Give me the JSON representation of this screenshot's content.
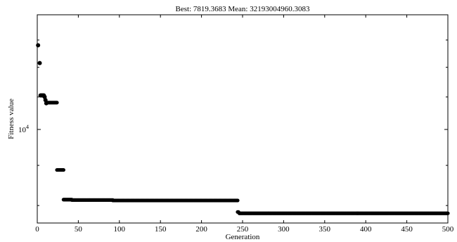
{
  "chart_data": {
    "type": "scatter",
    "title": "Best: 7819.3683 Mean: 32193004960.3083",
    "xlabel": "Generation",
    "ylabel": "Fitness value",
    "xlim": [
      0,
      500
    ],
    "ylim": [
      7600,
      14000
    ],
    "y_scale": "log",
    "x_ticks": [
      0,
      50,
      100,
      150,
      200,
      250,
      300,
      350,
      400,
      450,
      500
    ],
    "y_ticks": [
      {
        "value": 10000,
        "base": "10",
        "exponent": "4"
      }
    ],
    "grid": false,
    "marker_color": "#000000",
    "series": [
      {
        "points": [
          [
            1,
            12800
          ],
          [
            3,
            12150
          ],
          [
            4,
            11050
          ],
          [
            5,
            11050
          ],
          [
            6,
            11050
          ],
          [
            7,
            11050
          ],
          [
            8,
            11050
          ],
          [
            9,
            11000
          ],
          [
            10,
            10900
          ],
          [
            11,
            10800
          ]
        ],
        "segments": [
          {
            "x_from": 12,
            "x_to": 24,
            "y": 10820
          },
          {
            "x_from": 24,
            "x_to": 32,
            "y": 8880
          },
          {
            "x_from": 32,
            "x_to": 42,
            "y": 8140
          },
          {
            "x_from": 42,
            "x_to": 92,
            "y": 8130
          },
          {
            "x_from": 92,
            "x_to": 244,
            "y": 8120
          },
          {
            "x_from": 244,
            "x_to": 245,
            "y": 7850
          },
          {
            "x_from": 246,
            "x_to": 500,
            "y": 7819.3683
          }
        ]
      }
    ]
  }
}
